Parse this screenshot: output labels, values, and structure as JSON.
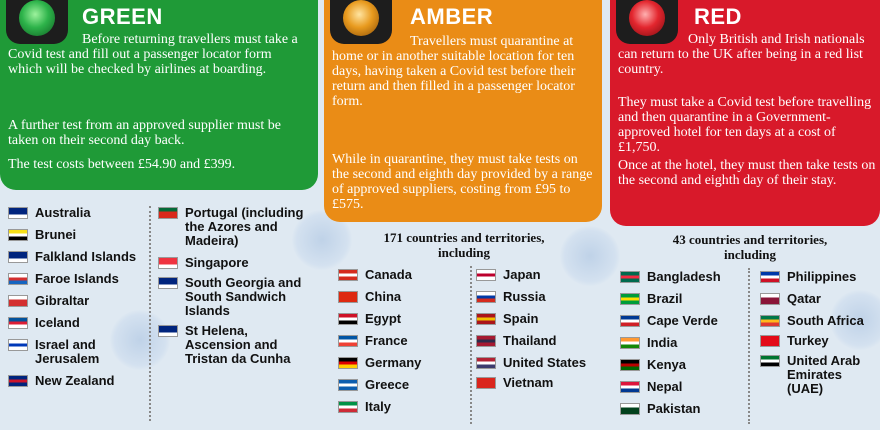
{
  "green": {
    "heading": "GREEN",
    "p1": "Before returning travellers must take a Covid test and fill out a passenger locator form which will be checked by airlines at boarding.",
    "p2": "A further test from an approved supplier must be taken on their second day back.",
    "p3": "The test costs between £54.90 and £399.",
    "countries_left": [
      {
        "name": "Australia",
        "flag": [
          "#00247d",
          "#00247d",
          "#fff"
        ]
      },
      {
        "name": "Brunei",
        "flag": [
          "#f7e017",
          "#fff",
          "#000"
        ]
      },
      {
        "name": "Falkland Islands",
        "flag": [
          "#00247d",
          "#00247d",
          "#fff"
        ]
      },
      {
        "name": "Faroe Islands",
        "flag": [
          "#fff",
          "#d32f2f",
          "#1565c0"
        ]
      },
      {
        "name": "Gibraltar",
        "flag": [
          "#fff",
          "#d32f2f",
          "#d32f2f"
        ]
      },
      {
        "name": "Iceland",
        "flag": [
          "#02529c",
          "#dc1e35",
          "#fff"
        ]
      },
      {
        "name": "Israel and Jerusalem",
        "flag": [
          "#fff",
          "#0038b8",
          "#fff"
        ]
      },
      {
        "name": "New Zealand",
        "flag": [
          "#00247d",
          "#cc142b",
          "#00247d"
        ]
      }
    ],
    "countries_right": [
      {
        "name": "Portugal (including the Azores and Madeira)",
        "flag": [
          "#046a38",
          "#da291c",
          "#da291c"
        ]
      },
      {
        "name": "Singapore",
        "flag": [
          "#ef3340",
          "#ef3340",
          "#fff"
        ]
      },
      {
        "name": "South Georgia and South Sandwich Islands",
        "flag": [
          "#00247d",
          "#00247d",
          "#fff"
        ]
      },
      {
        "name": "St Helena, Ascension and Tristan da Cunha",
        "flag": [
          "#00247d",
          "#00247d",
          "#fff"
        ]
      }
    ]
  },
  "amber": {
    "heading": "AMBER",
    "p1": "Travellers must quarantine at home or in another suitable location for ten days, having taken a Covid test before their return and then filled in a passenger locator form.",
    "p2": "While in quarantine, they must take tests on the second and eighth day provided by a range of approved suppliers, costing from £95 to £575.",
    "count": "171 countries and territories, including",
    "countries_left": [
      {
        "name": "Canada",
        "flag": [
          "#d52b1e",
          "#fff",
          "#d52b1e"
        ]
      },
      {
        "name": "China",
        "flag": [
          "#de2910",
          "#de2910",
          "#de2910"
        ]
      },
      {
        "name": "Egypt",
        "flag": [
          "#ce1126",
          "#fff",
          "#000"
        ]
      },
      {
        "name": "France",
        "flag": [
          "#0055a4",
          "#fff",
          "#ef4135"
        ]
      },
      {
        "name": "Germany",
        "flag": [
          "#000",
          "#dd0000",
          "#ffce00"
        ]
      },
      {
        "name": "Greece",
        "flag": [
          "#0d5eaf",
          "#fff",
          "#0d5eaf"
        ]
      },
      {
        "name": "Italy",
        "flag": [
          "#009246",
          "#fff",
          "#ce2b37"
        ]
      }
    ],
    "countries_right": [
      {
        "name": "Japan",
        "flag": [
          "#fff",
          "#bc002d",
          "#fff"
        ]
      },
      {
        "name": "Russia",
        "flag": [
          "#fff",
          "#0039a6",
          "#d52b1e"
        ]
      },
      {
        "name": "Spain",
        "flag": [
          "#aa151b",
          "#f1bf00",
          "#aa151b"
        ]
      },
      {
        "name": "Thailand",
        "flag": [
          "#a51931",
          "#2d2a4a",
          "#a51931"
        ]
      },
      {
        "name": "United States",
        "flag": [
          "#b22234",
          "#fff",
          "#3c3b6e"
        ]
      },
      {
        "name": "Vietnam",
        "flag": [
          "#da251d",
          "#da251d",
          "#da251d"
        ]
      }
    ]
  },
  "red": {
    "heading": "RED",
    "p1": "Only British and Irish nationals can return to the UK after being in a red list country.",
    "p2": "They must take a Covid test before travelling and then quarantine in a Government-approved hotel for ten days at a cost of £1,750.",
    "p3": "Once at the hotel, they must then take tests on the second and eighth day of their stay.",
    "count": "43 countries and territories, including",
    "countries_left": [
      {
        "name": "Bangladesh",
        "flag": [
          "#006a4e",
          "#f42a41",
          "#006a4e"
        ]
      },
      {
        "name": "Brazil",
        "flag": [
          "#009c3b",
          "#ffdf00",
          "#009c3b"
        ]
      },
      {
        "name": "Cape Verde",
        "flag": [
          "#003893",
          "#fff",
          "#cf2027"
        ]
      },
      {
        "name": "India",
        "flag": [
          "#ff9933",
          "#fff",
          "#138808"
        ]
      },
      {
        "name": "Kenya",
        "flag": [
          "#000",
          "#bb0000",
          "#006600"
        ]
      },
      {
        "name": "Nepal",
        "flag": [
          "#dc143c",
          "#fff",
          "#003893"
        ]
      },
      {
        "name": "Pakistan",
        "flag": [
          "#fff",
          "#01411c",
          "#01411c"
        ]
      }
    ],
    "countries_right": [
      {
        "name": "Philippines",
        "flag": [
          "#0038a8",
          "#fff",
          "#ce1126"
        ]
      },
      {
        "name": "Qatar",
        "flag": [
          "#fff",
          "#8a1538",
          "#8a1538"
        ]
      },
      {
        "name": "South Africa",
        "flag": [
          "#007749",
          "#ffb81c",
          "#de3831"
        ]
      },
      {
        "name": "Turkey",
        "flag": [
          "#e30a17",
          "#e30a17",
          "#e30a17"
        ]
      },
      {
        "name": "United Arab Emirates (UAE)",
        "flag": [
          "#00732f",
          "#fff",
          "#000"
        ]
      }
    ]
  }
}
